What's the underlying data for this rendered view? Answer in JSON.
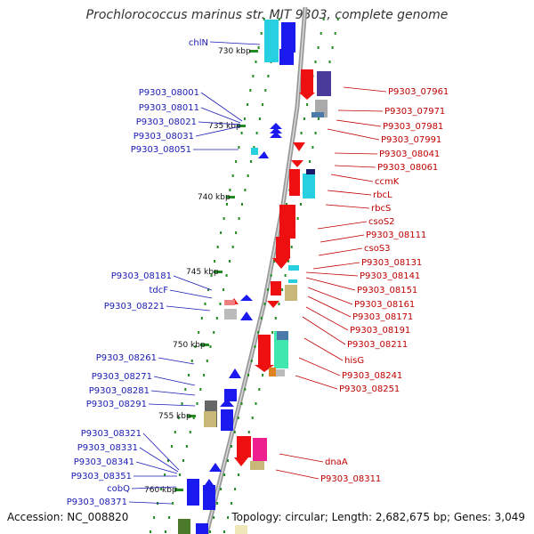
{
  "title": "Prochlorococcus marinus str. MIT 9303, complete genome",
  "footer": {
    "accession": "Accession: NC_008820",
    "summary": "Topology: circular; Length: 2,682,675 bp; Genes: 3,049"
  },
  "kbp_ticks": [
    "730 kbp",
    "735 kbp",
    "740 kbp",
    "745 kbp",
    "750 kbp",
    "755 kbp",
    "760 kbp"
  ],
  "left_labels": [
    "chlN",
    "P9303_08001",
    "P9303_08011",
    "P9303_08021",
    "P9303_08031",
    "P9303_08051",
    "P9303_08181",
    "tdcF",
    "P9303_08221",
    "P9303_08261",
    "P9303_08271",
    "P9303_08281",
    "P9303_08291",
    "P9303_08321",
    "P9303_08331",
    "P9303_08341",
    "P9303_08351",
    "cobQ",
    "P9303_08371"
  ],
  "right_labels": [
    "P9303_07961",
    "P9303_07971",
    "P9303_07981",
    "P9303_07991",
    "P9303_08041",
    "P9303_08061",
    "ccmK",
    "rbcL",
    "rbcS",
    "csoS2",
    "P9303_08111",
    "csoS3",
    "P9303_08131",
    "P9303_08141",
    "P9303_08151",
    "P9303_08161",
    "P9303_08171",
    "P9303_08191",
    "P9303_08211",
    "hisG",
    "P9303_08241",
    "P9303_08251",
    "dnaA",
    "P9303_08311"
  ],
  "colors": {
    "reverse_strand_genes": "#0000ee",
    "forward_strand_genes": "#ee0000",
    "left_label_text": "#1a1ab4",
    "right_label_text": "#c00000",
    "backbone": "#888888",
    "tick_marks": "#228b22"
  }
}
